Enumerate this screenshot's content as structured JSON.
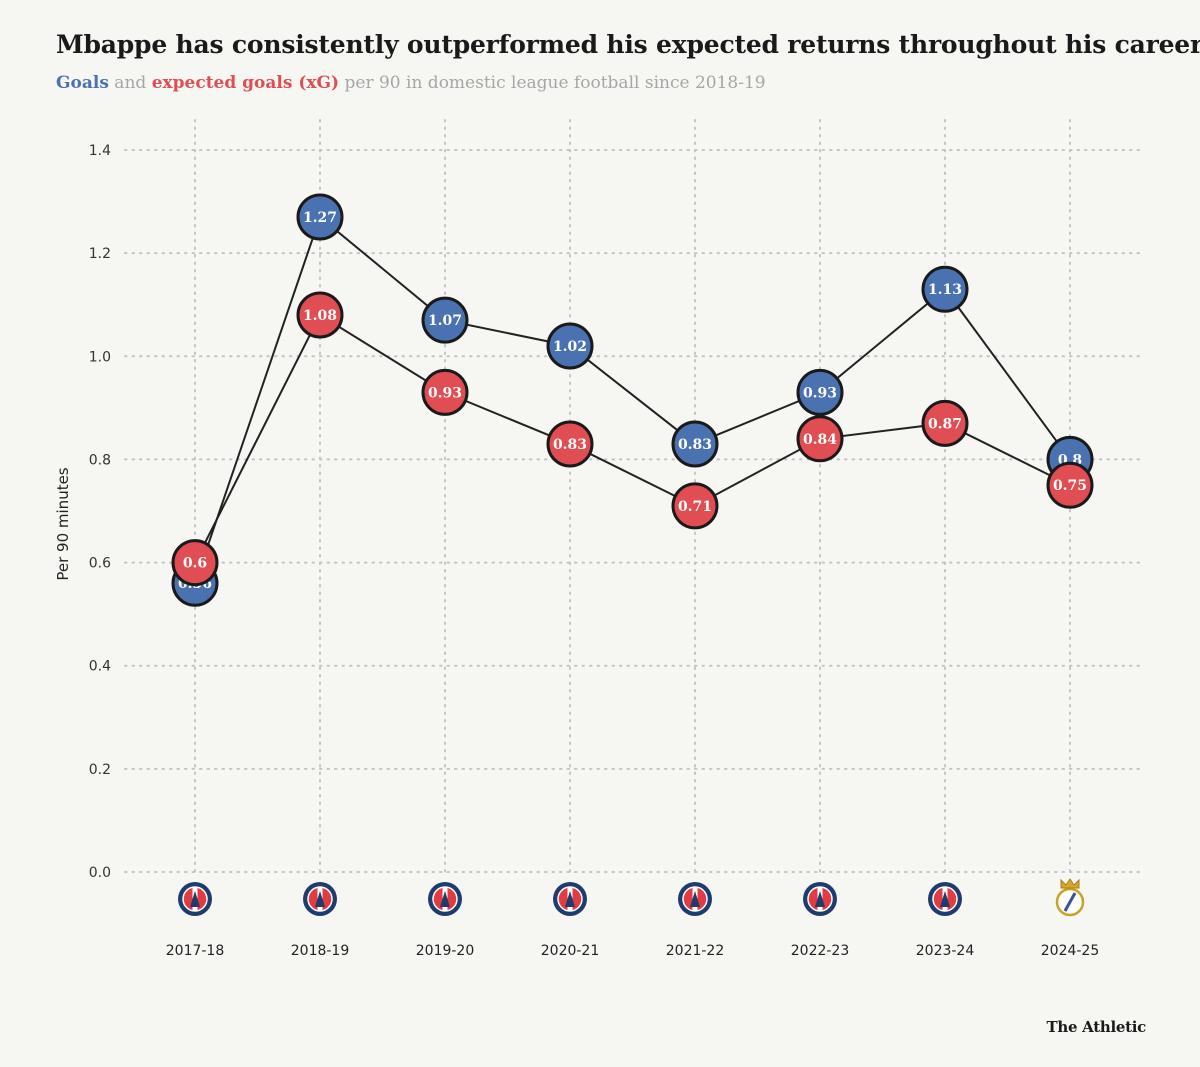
{
  "header": {
    "title": "Mbappe has consistently outperformed his expected returns throughout his career",
    "subtitle_goals": "Goals",
    "subtitle_and": " and ",
    "subtitle_xg": "expected goals (xG)",
    "subtitle_rest": " per 90 in domestic league football since 2018-19"
  },
  "footer": {
    "brand": "The Athletic"
  },
  "colors": {
    "goals": "#4a72b0",
    "xg": "#e04d52",
    "grid": "#c4c4c4",
    "line": "#222222",
    "background": "#f6f6f3"
  },
  "chart_data": {
    "type": "line",
    "ylabel": "Per 90 minutes",
    "xlabel": "",
    "ylim": [
      0,
      1.4
    ],
    "yticks": [
      "0.0",
      "0.2",
      "0.4",
      "0.6",
      "0.8",
      "1.0",
      "1.2",
      "1.4"
    ],
    "grid": "dotted, both axes",
    "categories": [
      "2017-18",
      "2018-19",
      "2019-20",
      "2020-21",
      "2021-22",
      "2022-23",
      "2023-24",
      "2024-25"
    ],
    "club_badges": [
      "psg-badge-icon",
      "psg-badge-icon",
      "psg-badge-icon",
      "psg-badge-icon",
      "psg-badge-icon",
      "psg-badge-icon",
      "psg-badge-icon",
      "real-madrid-badge-icon"
    ],
    "series": [
      {
        "key": "goals",
        "values": [
          0.56,
          1.27,
          1.07,
          1.02,
          0.83,
          0.93,
          1.13,
          0.8
        ],
        "labels": [
          "0.56",
          "1.27",
          "1.07",
          "1.02",
          "0.83",
          "0.93",
          "1.13",
          "0.8"
        ]
      },
      {
        "key": "xg",
        "values": [
          0.6,
          1.08,
          0.93,
          0.83,
          0.71,
          0.84,
          0.87,
          0.75
        ],
        "labels": [
          "0.6",
          "1.08",
          "0.93",
          "0.83",
          "0.71",
          "0.84",
          "0.87",
          "0.75"
        ]
      }
    ]
  }
}
